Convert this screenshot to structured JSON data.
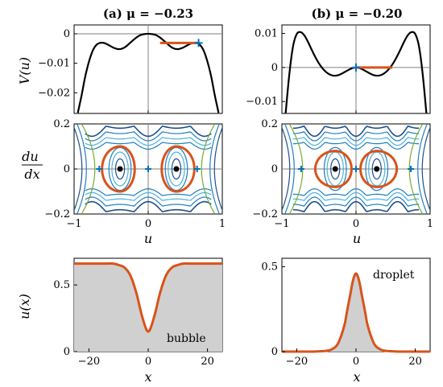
{
  "colors": {
    "potential": "#000000",
    "orbit": "#d95319",
    "fixed_saddle": "#0072bd",
    "fill": "#d0d0d0",
    "axis_line": "#808080",
    "level_blue": "#1f4e8c",
    "level_mid": "#1f7fc0",
    "level_light": "#4cb2e0",
    "level_green": "#77ac30",
    "level_yellow": "#edb120",
    "center": "#000000"
  },
  "chart_data": [
    {
      "id": "a-potential",
      "type": "line",
      "title": "(a) μ = −0.23",
      "ylabel": "V(u)",
      "xlim": [
        -1,
        1
      ],
      "ylim": [
        -0.027,
        0.003
      ],
      "yticks": [
        0,
        -0.01,
        -0.02
      ],
      "ytick_labels": [
        "0",
        "−0.01",
        "−0.02"
      ],
      "series": [
        {
          "values_desc": "potential",
          "x": [
            -0.95,
            -0.9,
            -0.85,
            -0.8,
            -0.75,
            -0.7,
            -0.65,
            -0.6,
            -0.55,
            -0.5,
            -0.45,
            -0.4,
            -0.35,
            -0.3,
            -0.25,
            -0.2,
            -0.15,
            -0.1,
            -0.05,
            0,
            0.05,
            0.1,
            0.15,
            0.2,
            0.25,
            0.3,
            0.35,
            0.4,
            0.45,
            0.5,
            0.55,
            0.6,
            0.65,
            0.7,
            0.75,
            0.8,
            0.85,
            0.9,
            0.95
          ],
          "y": [
            -0.0268,
            -0.021,
            -0.0145,
            -0.0095,
            -0.0058,
            -0.0038,
            -0.0031,
            -0.0031,
            -0.0036,
            -0.0043,
            -0.0049,
            -0.0052,
            -0.005,
            -0.0043,
            -0.0032,
            -0.0021,
            -0.0011,
            -0.0004,
            -0.0001,
            0,
            -0.0001,
            -0.0004,
            -0.0011,
            -0.0021,
            -0.0032,
            -0.0043,
            -0.005,
            -0.0052,
            -0.0049,
            -0.0043,
            -0.0036,
            -0.0031,
            -0.0031,
            -0.0038,
            -0.0058,
            -0.0095,
            -0.0145,
            -0.021,
            -0.0268
          ]
        }
      ],
      "energy_segment": {
        "x": [
          0.16,
          0.68
        ],
        "y": -0.0031
      },
      "markers": [
        {
          "x": 0.68,
          "y": -0.0031
        }
      ]
    },
    {
      "id": "b-potential",
      "type": "line",
      "title": "(b) μ = −0.20",
      "ylim": [
        -0.0135,
        0.0125
      ],
      "yticks": [
        0.01,
        0,
        -0.01
      ],
      "ytick_labels": [
        "0.01",
        "0",
        "−0.01"
      ],
      "series": [
        {
          "values_desc": "potential",
          "x": [
            -0.95,
            -0.9,
            -0.85,
            -0.8,
            -0.75,
            -0.7,
            -0.65,
            -0.6,
            -0.55,
            -0.5,
            -0.45,
            -0.4,
            -0.35,
            -0.3,
            -0.25,
            -0.2,
            -0.15,
            -0.1,
            -0.05,
            0,
            0.05,
            0.1,
            0.15,
            0.2,
            0.25,
            0.3,
            0.35,
            0.4,
            0.45,
            0.5,
            0.55,
            0.6,
            0.65,
            0.7,
            0.75,
            0.8,
            0.85,
            0.9,
            0.95
          ],
          "y": [
            -0.0135,
            -0.002,
            0.0062,
            0.0098,
            0.0104,
            0.0095,
            0.0076,
            0.0053,
            0.0031,
            0.0012,
            -0.0003,
            -0.0014,
            -0.0021,
            -0.0024,
            -0.0023,
            -0.0019,
            -0.0013,
            -0.0007,
            -0.0002,
            0,
            -0.0002,
            -0.0007,
            -0.0013,
            -0.0019,
            -0.0023,
            -0.0024,
            -0.0021,
            -0.0014,
            -0.0003,
            0.0012,
            0.0031,
            0.0053,
            0.0076,
            0.0095,
            0.0104,
            0.0098,
            0.0062,
            -0.002,
            -0.0135
          ]
        }
      ],
      "energy_segment": {
        "x": [
          0,
          0.49
        ],
        "y": 0
      },
      "markers": [
        {
          "x": 0,
          "y": 0
        }
      ]
    },
    {
      "id": "a-phase",
      "type": "line",
      "xlabel": "u",
      "ylabel": "du/dx",
      "xlim": [
        -1,
        1
      ],
      "ylim": [
        -0.2,
        0.2
      ],
      "xticks": [
        -1,
        0,
        1
      ],
      "xtick_labels": [
        "−1",
        "0",
        "1"
      ],
      "yticks": [
        0.2,
        0,
        -0.2
      ],
      "ytick_labels": [
        "0.2",
        "0",
        "−0.2"
      ],
      "centers": [
        -0.38,
        0.38
      ],
      "saddles": [
        -0.66,
        0,
        0.66
      ],
      "separatrix_halfwidth_x": 0.18,
      "separatrix_height": 0.1
    },
    {
      "id": "b-phase",
      "type": "line",
      "xlim": [
        -1,
        1
      ],
      "ylim": [
        -0.2,
        0.2
      ],
      "xticks": [
        -1,
        0,
        1
      ],
      "xtick_labels": [
        "−1",
        "0",
        "1"
      ],
      "centers": [
        -0.28,
        0.28
      ],
      "saddles": [
        -0.74,
        0,
        0.74
      ],
      "separatrix_halfwidth_x": 0.2,
      "separatrix_height": 0.08
    },
    {
      "id": "a-profile",
      "type": "area",
      "xlabel": "x",
      "ylabel": "u(x)",
      "xlim": [
        -25,
        25
      ],
      "ylim": [
        0,
        0.7
      ],
      "xticks": [
        -20,
        0,
        20
      ],
      "xtick_labels": [
        "−20",
        "0",
        "20"
      ],
      "yticks": [
        0.5,
        0
      ],
      "ytick_labels": [
        "0.5",
        "0"
      ],
      "annotation": "bubble",
      "series": [
        {
          "x": [
            -25,
            -20,
            -15,
            -12,
            -10,
            -8,
            -6,
            -4,
            -2,
            0,
            2,
            4,
            6,
            8,
            10,
            12,
            15,
            20,
            25
          ],
          "y": [
            0.66,
            0.66,
            0.66,
            0.66,
            0.65,
            0.63,
            0.57,
            0.44,
            0.26,
            0.15,
            0.26,
            0.44,
            0.57,
            0.63,
            0.65,
            0.66,
            0.66,
            0.66,
            0.66
          ]
        }
      ]
    },
    {
      "id": "b-profile",
      "type": "area",
      "xlabel": "x",
      "xlim": [
        -25,
        25
      ],
      "ylim": [
        0,
        0.55
      ],
      "xticks": [
        -20,
        0,
        20
      ],
      "xtick_labels": [
        "−20",
        "0",
        "20"
      ],
      "yticks": [
        0.5,
        0
      ],
      "ytick_labels": [
        "0.5",
        "0"
      ],
      "annotation": "droplet",
      "series": [
        {
          "x": [
            -25,
            -20,
            -15,
            -12,
            -10,
            -8,
            -6,
            -4,
            -3,
            -2,
            -1,
            0,
            1,
            2,
            3,
            4,
            6,
            8,
            10,
            12,
            15,
            20,
            25
          ],
          "y": [
            0,
            0,
            0,
            0.002,
            0.005,
            0.015,
            0.05,
            0.15,
            0.24,
            0.33,
            0.42,
            0.46,
            0.42,
            0.33,
            0.24,
            0.15,
            0.05,
            0.015,
            0.005,
            0.002,
            0,
            0,
            0
          ]
        }
      ]
    }
  ]
}
